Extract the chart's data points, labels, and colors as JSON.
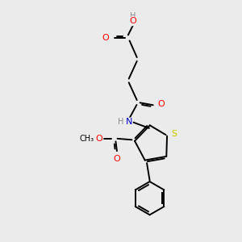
{
  "bg_color": "#ebebeb",
  "atom_colors": {
    "C": "#000000",
    "O": "#ff0000",
    "N": "#0000cc",
    "S": "#cccc00",
    "H": "#888888"
  },
  "lw": 1.4,
  "fs": 8.0,
  "fs_small": 7.0
}
